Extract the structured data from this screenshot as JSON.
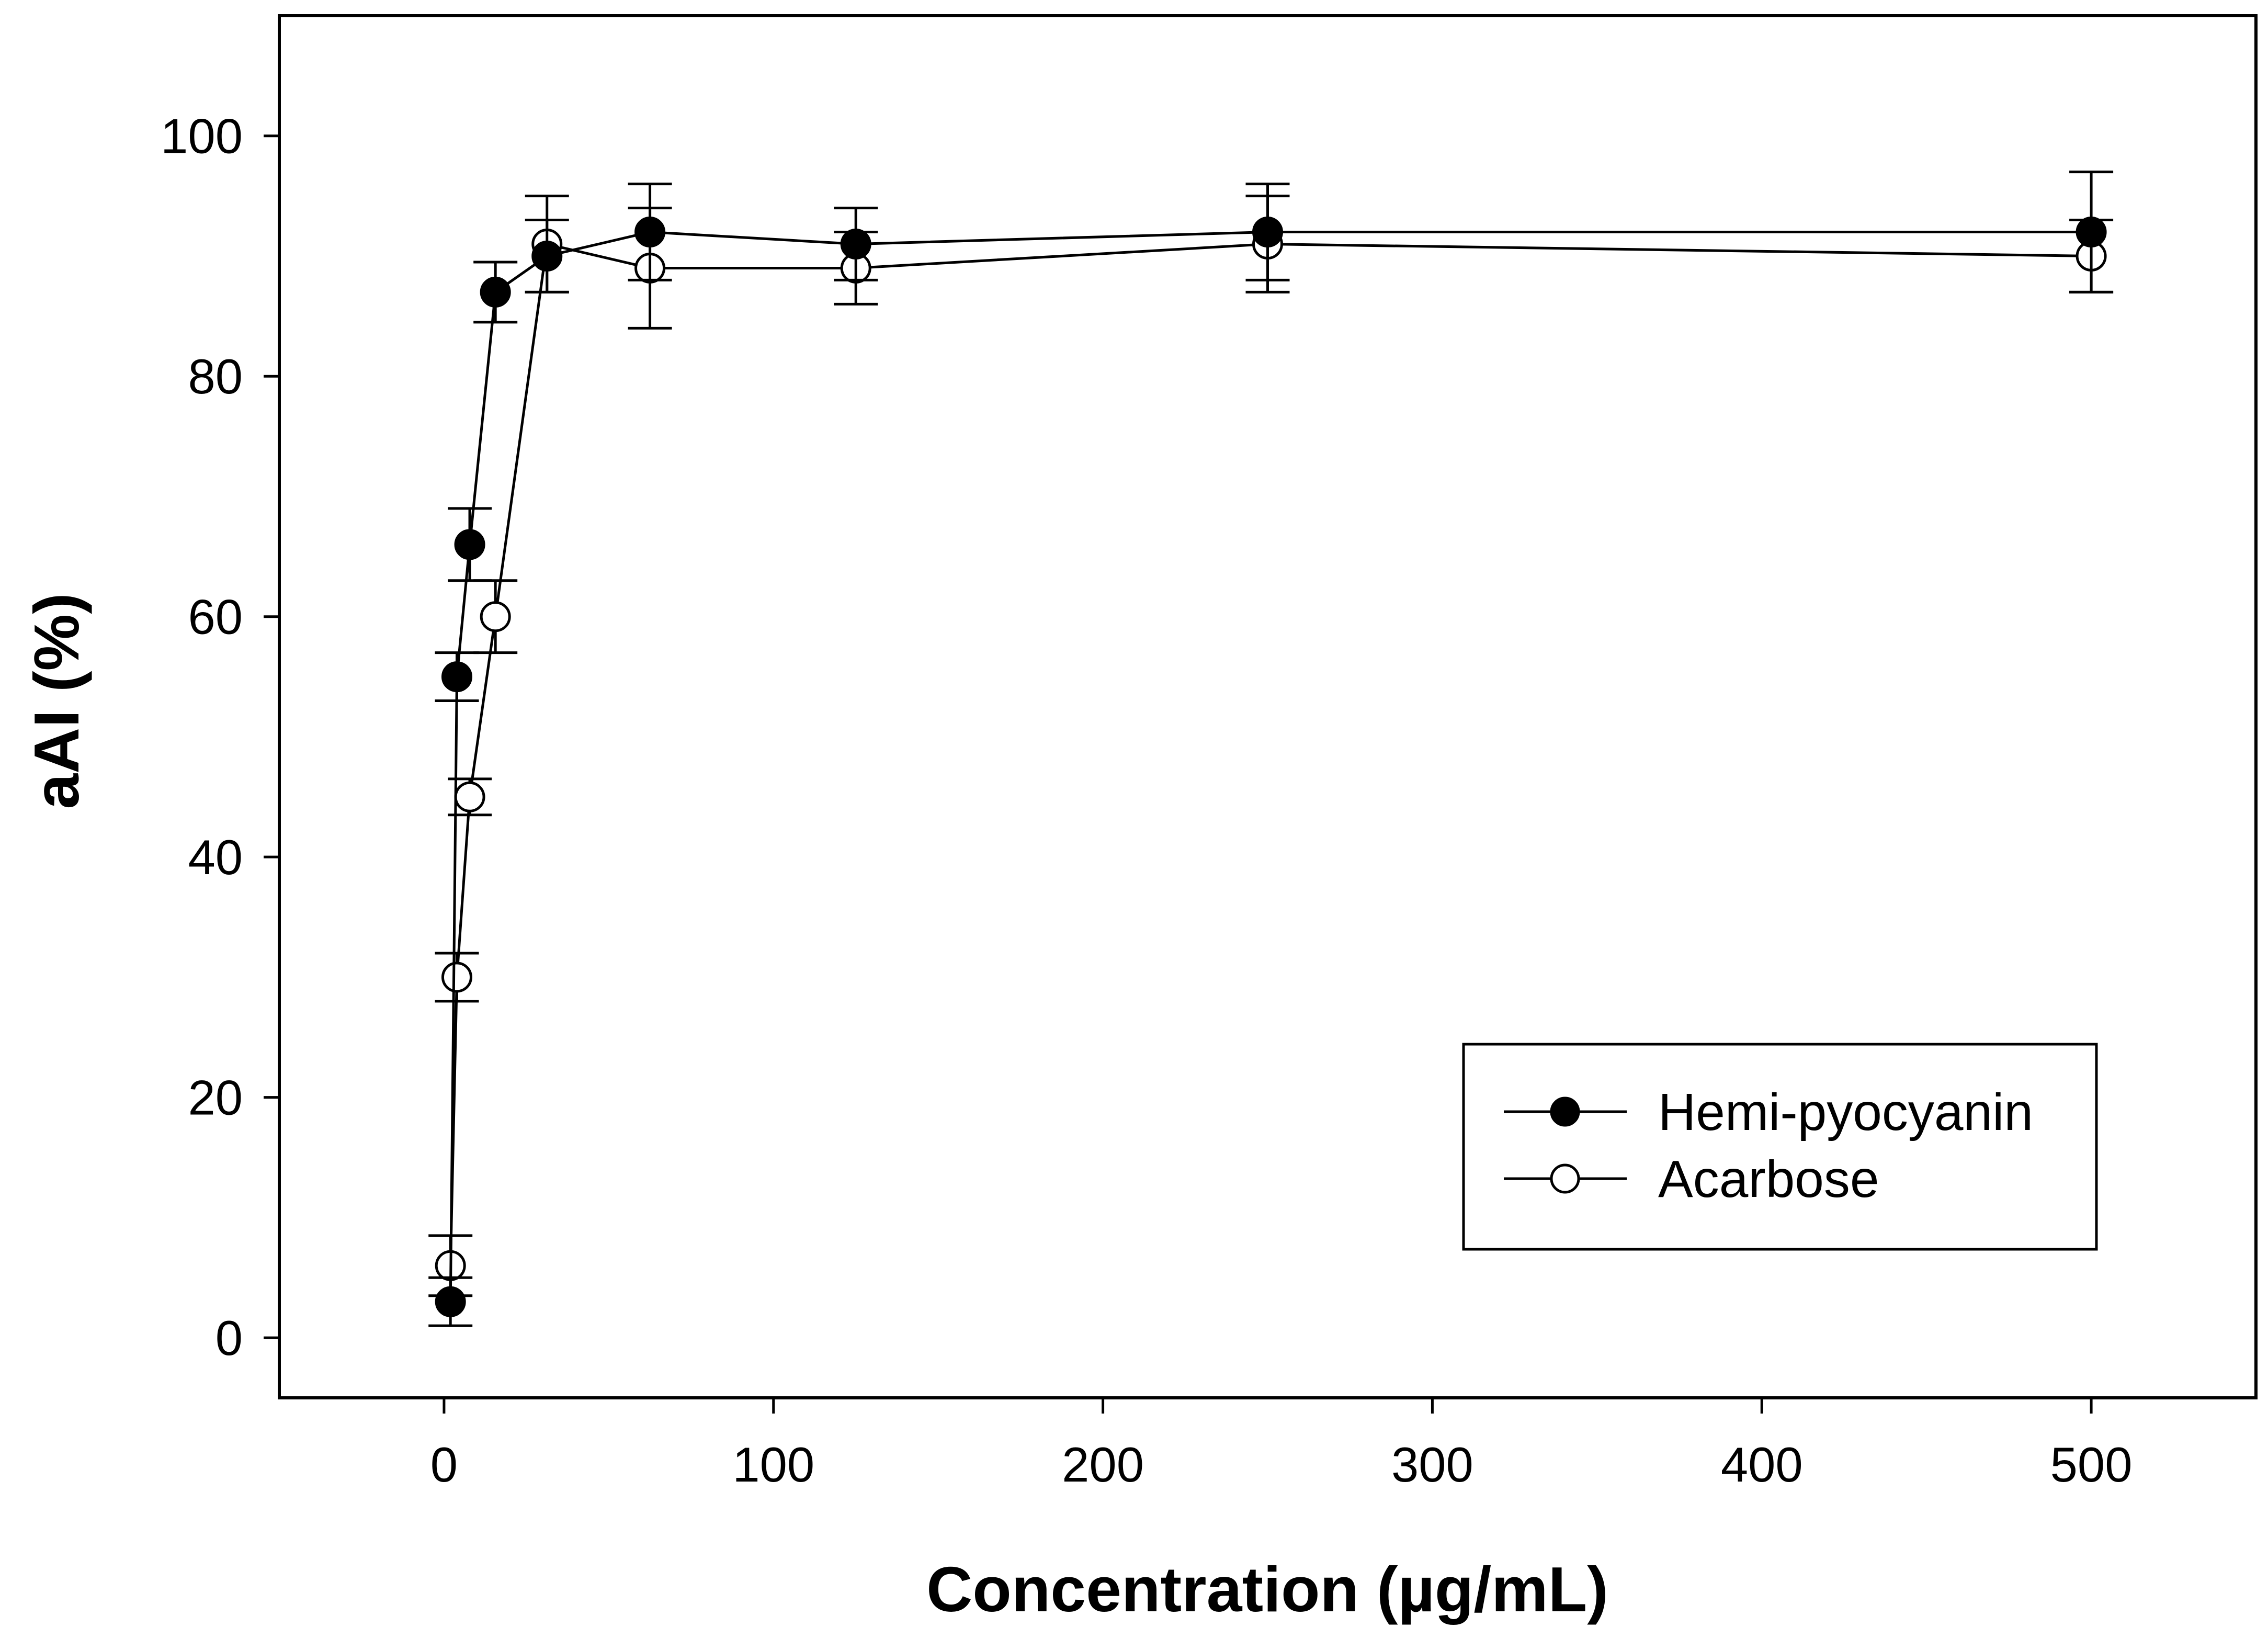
{
  "chart_data": {
    "type": "line",
    "title": "",
    "xlabel": "Concentration (µg/mL)",
    "ylabel": "aAI (%)",
    "xlim": [
      -50,
      550
    ],
    "ylim": [
      -5,
      110
    ],
    "xticks": [
      0,
      100,
      200,
      300,
      400,
      500
    ],
    "yticks": [
      0,
      20,
      40,
      60,
      80,
      100
    ],
    "xtick_labels": [
      "0",
      "100",
      "200",
      "300",
      "400",
      "500"
    ],
    "ytick_labels": [
      "0",
      "20",
      "40",
      "60",
      "80",
      "100"
    ],
    "grid": false,
    "legend_position": "lower-right",
    "x": [
      1.95,
      3.9,
      7.8,
      15.6,
      31.25,
      62.5,
      125,
      250,
      500
    ],
    "series": [
      {
        "name": "Hemi-pyocyanin",
        "marker": "filled-circle",
        "values": [
          3,
          55,
          66,
          87,
          90,
          92,
          91,
          92,
          92
        ],
        "errors": [
          2,
          2,
          3,
          2.5,
          3,
          4,
          3,
          4,
          5
        ]
      },
      {
        "name": "Acarbose",
        "marker": "open-circle",
        "values": [
          6,
          30,
          45,
          60,
          91,
          89,
          89,
          91,
          90
        ],
        "errors": [
          2.5,
          2,
          1.5,
          3,
          4,
          5,
          3,
          4,
          3
        ]
      }
    ],
    "colors": {
      "line": "#000000",
      "filled_marker": "#000000",
      "open_marker_fill": "#ffffff"
    }
  }
}
